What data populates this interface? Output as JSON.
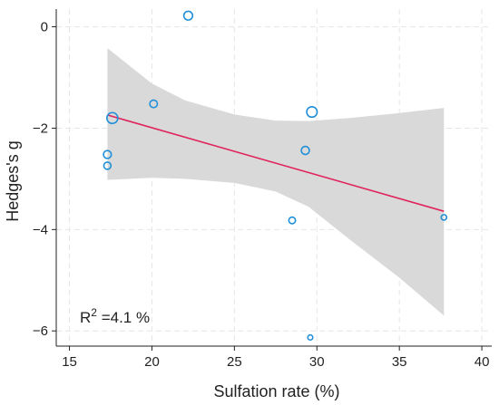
{
  "chart_data": {
    "type": "scatter",
    "title": "",
    "xlabel": "Sulfation rate (%)",
    "ylabel": "Hedges's g",
    "xlim": [
      14.2,
      40.6
    ],
    "ylim": [
      -6.3,
      0.35
    ],
    "xticks": [
      15,
      20,
      25,
      30,
      35,
      40
    ],
    "yticks": [
      0,
      -2,
      -4,
      -6
    ],
    "ytick_labels": [
      "0",
      "−2",
      "−4",
      "−6"
    ],
    "grid": true,
    "annotation": {
      "base": "R",
      "sup": "2",
      "rest": " =4.1 %"
    },
    "points": [
      {
        "x": 22.2,
        "y": 0.22,
        "weight": 2.5
      },
      {
        "x": 20.1,
        "y": -1.52,
        "weight": 2.0
      },
      {
        "x": 17.6,
        "y": -1.8,
        "weight": 3.4
      },
      {
        "x": 17.3,
        "y": -2.52,
        "weight": 2.1
      },
      {
        "x": 17.3,
        "y": -2.74,
        "weight": 1.8
      },
      {
        "x": 29.7,
        "y": -1.68,
        "weight": 3.2
      },
      {
        "x": 29.3,
        "y": -2.44,
        "weight": 2.2
      },
      {
        "x": 28.5,
        "y": -3.82,
        "weight": 1.6
      },
      {
        "x": 37.7,
        "y": -3.76,
        "weight": 1.1
      },
      {
        "x": 29.6,
        "y": -6.13,
        "weight": 0.9
      }
    ],
    "fit_line": {
      "x": [
        17.3,
        37.7
      ],
      "y": [
        -1.74,
        -3.64
      ],
      "color": "#e0245e"
    },
    "confidence_band": {
      "x": [
        17.3,
        20,
        22,
        25,
        27.5,
        29.5,
        32,
        35,
        37.7
      ],
      "upper": [
        -0.42,
        -1.12,
        -1.45,
        -1.73,
        -1.85,
        -1.86,
        -1.8,
        -1.7,
        -1.6
      ],
      "lower": [
        -3.02,
        -2.98,
        -3.0,
        -3.08,
        -3.25,
        -3.55,
        -4.2,
        -4.95,
        -5.7
      ],
      "color": "#d9d9d9"
    },
    "marker_color": "#1f8fd8"
  }
}
